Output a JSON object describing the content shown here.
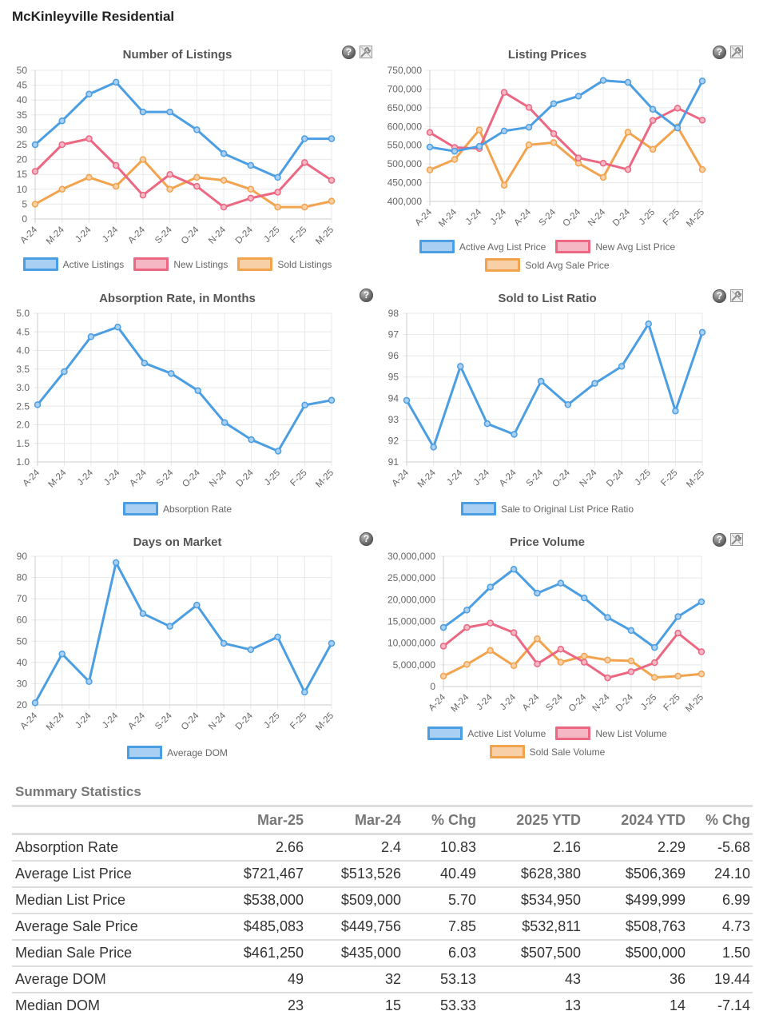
{
  "page": {
    "title": "McKinleyville Residential"
  },
  "icons": {
    "help": "help-icon",
    "tools": "wrench-icon"
  },
  "colors": {
    "blue": "#4c9ee2",
    "blue_fill": "#a9cff3",
    "pink": "#ec6782",
    "pink_fill": "#f6b7c4",
    "orange": "#f2a34e",
    "orange_fill": "#f8d0a7",
    "grid": "#e8e8e8",
    "axis": "#cccccc"
  },
  "chart_data": [
    {
      "id": "listings",
      "type": "line",
      "title": "Number of Listings",
      "xlabel": "",
      "ylabel": "",
      "categories": [
        "A-24",
        "M-24",
        "J-24",
        "J-24",
        "A-24",
        "S-24",
        "O-24",
        "N-24",
        "D-24",
        "J-25",
        "F-25",
        "M-25"
      ],
      "ylim": [
        0,
        50
      ],
      "yticks": [
        0,
        5,
        10,
        15,
        20,
        25,
        30,
        35,
        40,
        45,
        50
      ],
      "ytick_labels": [
        "0",
        "5",
        "10",
        "15",
        "20",
        "25",
        "30",
        "35",
        "40",
        "45",
        "50"
      ],
      "grid": true,
      "legend": "bottom",
      "has_tools_icon": true,
      "series": [
        {
          "name": "Active Listings",
          "color": "blue",
          "values": [
            25,
            33,
            42,
            46,
            36,
            36,
            30,
            22,
            18,
            14,
            27,
            27
          ]
        },
        {
          "name": "New Listings",
          "color": "pink",
          "values": [
            16,
            25,
            27,
            18,
            8,
            15,
            11,
            4,
            7,
            9,
            19,
            13
          ]
        },
        {
          "name": "Sold Listings",
          "color": "orange",
          "values": [
            5,
            10,
            14,
            11,
            20,
            10,
            14,
            13,
            10,
            4,
            4,
            6
          ]
        }
      ]
    },
    {
      "id": "prices",
      "type": "line",
      "title": "Listing Prices",
      "xlabel": "",
      "ylabel": "",
      "categories": [
        "A-24",
        "M-24",
        "J-24",
        "J-24",
        "A-24",
        "S-24",
        "O-24",
        "N-24",
        "D-24",
        "J-25",
        "F-25",
        "M-25"
      ],
      "ylim": [
        400000,
        750000
      ],
      "yticks": [
        400000,
        450000,
        500000,
        550000,
        600000,
        650000,
        700000,
        750000
      ],
      "ytick_labels": [
        "400,000",
        "450,000",
        "500,000",
        "550,000",
        "600,000",
        "650,000",
        "700,000",
        "750,000"
      ],
      "grid": true,
      "legend": "bottom",
      "has_tools_icon": true,
      "series": [
        {
          "name": "Active Avg List Price",
          "color": "blue",
          "values": [
            545000,
            534000,
            547000,
            588000,
            598000,
            661000,
            681000,
            723000,
            718000,
            646000,
            596000,
            721467
          ]
        },
        {
          "name": "New Avg List Price",
          "color": "pink",
          "values": [
            584000,
            544000,
            541000,
            691000,
            651000,
            581000,
            516000,
            502000,
            485000,
            616000,
            649000,
            617000
          ]
        },
        {
          "name": "Sold Avg Sale Price",
          "color": "orange",
          "values": [
            484000,
            512000,
            591000,
            443000,
            551000,
            557000,
            502000,
            464000,
            585000,
            539000,
            599000,
            485083
          ]
        }
      ]
    },
    {
      "id": "absorption",
      "type": "line",
      "title": "Absorption Rate, in Months",
      "xlabel": "",
      "ylabel": "",
      "categories": [
        "A-24",
        "M-24",
        "J-24",
        "J-24",
        "A-24",
        "S-24",
        "O-24",
        "N-24",
        "D-24",
        "J-25",
        "F-25",
        "M-25"
      ],
      "ylim": [
        1.0,
        5.0
      ],
      "yticks": [
        1.0,
        1.5,
        2.0,
        2.5,
        3.0,
        3.5,
        4.0,
        4.5,
        5.0
      ],
      "ytick_labels": [
        "1.0",
        "1.5",
        "2.0",
        "2.5",
        "3.0",
        "3.5",
        "4.0",
        "4.5",
        "5.0"
      ],
      "grid": true,
      "legend": "bottom",
      "has_tools_icon": false,
      "series": [
        {
          "name": "Absorption Rate",
          "color": "blue",
          "values": [
            2.54,
            3.43,
            4.37,
            4.63,
            3.66,
            3.38,
            2.92,
            2.06,
            1.6,
            1.29,
            2.53,
            2.66
          ]
        }
      ]
    },
    {
      "id": "ratio",
      "type": "line",
      "title": "Sold to List Ratio",
      "xlabel": "",
      "ylabel": "",
      "categories": [
        "A-24",
        "M-24",
        "J-24",
        "J-24",
        "A-24",
        "S-24",
        "O-24",
        "N-24",
        "D-24",
        "J-25",
        "F-25",
        "M-25"
      ],
      "ylim": [
        91,
        98
      ],
      "yticks": [
        91,
        92,
        93,
        94,
        95,
        96,
        97,
        98
      ],
      "ytick_labels": [
        "91",
        "92",
        "93",
        "94",
        "95",
        "96",
        "97",
        "98"
      ],
      "grid": true,
      "legend": "bottom",
      "has_tools_icon": true,
      "series": [
        {
          "name": "Sale to Original List Price Ratio",
          "color": "blue",
          "values": [
            93.9,
            91.7,
            95.5,
            92.8,
            92.3,
            94.8,
            93.7,
            94.7,
            95.5,
            97.5,
            93.4,
            97.1
          ]
        }
      ]
    },
    {
      "id": "dom",
      "type": "line",
      "title": "Days on Market",
      "xlabel": "",
      "ylabel": "",
      "categories": [
        "A-24",
        "M-24",
        "J-24",
        "J-24",
        "A-24",
        "S-24",
        "O-24",
        "N-24",
        "D-24",
        "J-25",
        "F-25",
        "M-25"
      ],
      "ylim": [
        20,
        90
      ],
      "yticks": [
        20,
        30,
        40,
        50,
        60,
        70,
        80,
        90
      ],
      "ytick_labels": [
        "20",
        "30",
        "40",
        "50",
        "60",
        "70",
        "80",
        "90"
      ],
      "grid": true,
      "legend": "bottom",
      "has_tools_icon": false,
      "series": [
        {
          "name": "Average DOM",
          "color": "blue",
          "values": [
            21,
            44,
            31,
            87,
            63,
            57,
            67,
            49,
            46,
            52,
            26,
            49
          ]
        }
      ]
    },
    {
      "id": "volume",
      "type": "line",
      "title": "Price Volume",
      "xlabel": "",
      "ylabel": "",
      "categories": [
        "A-24",
        "M-24",
        "J-24",
        "J-24",
        "A-24",
        "S-24",
        "O-24",
        "N-24",
        "D-24",
        "J-25",
        "F-25",
        "M-25"
      ],
      "ylim": [
        0,
        30000000
      ],
      "yticks": [
        0,
        5000000,
        10000000,
        15000000,
        20000000,
        25000000,
        30000000
      ],
      "ytick_labels": [
        "0",
        "5,000,000",
        "10,000,000",
        "15,000,000",
        "20,000,000",
        "25,000,000",
        "30,000,000"
      ],
      "grid": true,
      "legend": "bottom",
      "has_tools_icon": true,
      "series": [
        {
          "name": "Active List Volume",
          "color": "blue",
          "values": [
            13600000,
            17600000,
            22900000,
            27000000,
            21500000,
            23800000,
            20400000,
            15900000,
            12900000,
            9000000,
            16100000,
            19500000
          ]
        },
        {
          "name": "New List Volume",
          "color": "pink",
          "values": [
            9300000,
            13600000,
            14600000,
            12400000,
            5200000,
            8600000,
            5600000,
            2000000,
            3400000,
            5500000,
            12300000,
            8000000
          ]
        },
        {
          "name": "Sold Sale Volume",
          "color": "orange",
          "values": [
            2400000,
            5100000,
            8300000,
            4800000,
            11000000,
            5600000,
            7000000,
            6100000,
            5900000,
            2100000,
            2400000,
            2900000
          ]
        }
      ]
    }
  ],
  "summary": {
    "title": "Summary Statistics",
    "columns": [
      "",
      "Mar-25",
      "Mar-24",
      "% Chg",
      "2025 YTD",
      "2024 YTD",
      "% Chg"
    ],
    "rows": [
      {
        "label": "Absorption Rate",
        "values": [
          "2.66",
          "2.4",
          "10.83",
          "2.16",
          "2.29",
          "-5.68"
        ]
      },
      {
        "label": "Average List Price",
        "values": [
          "$721,467",
          "$513,526",
          "40.49",
          "$628,380",
          "$506,369",
          "24.10"
        ]
      },
      {
        "label": "Median List Price",
        "values": [
          "$538,000",
          "$509,000",
          "5.70",
          "$534,950",
          "$499,999",
          "6.99"
        ]
      },
      {
        "label": "Average Sale Price",
        "values": [
          "$485,083",
          "$449,756",
          "7.85",
          "$532,811",
          "$508,763",
          "4.73"
        ]
      },
      {
        "label": "Median Sale Price",
        "values": [
          "$461,250",
          "$435,000",
          "6.03",
          "$507,500",
          "$500,000",
          "1.50"
        ]
      },
      {
        "label": "Average DOM",
        "values": [
          "49",
          "32",
          "53.13",
          "43",
          "36",
          "19.44"
        ]
      },
      {
        "label": "Median DOM",
        "values": [
          "23",
          "15",
          "53.33",
          "13",
          "14",
          "-7.14"
        ]
      }
    ]
  }
}
